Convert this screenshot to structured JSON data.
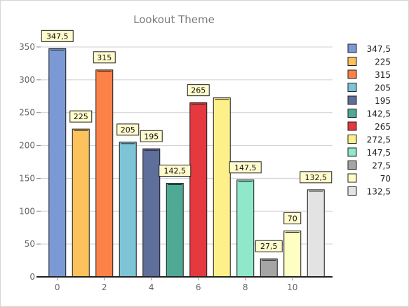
{
  "chart_data": {
    "type": "bar",
    "title": "Lookout Theme",
    "xlabel": "",
    "ylabel": "",
    "categories": [
      0,
      1,
      2,
      3,
      4,
      5,
      6,
      7,
      8,
      9,
      10,
      11
    ],
    "values": [
      347.5,
      225,
      315,
      205,
      195,
      142.5,
      265,
      272.5,
      147.5,
      27.5,
      70,
      132.5
    ],
    "value_labels": [
      "347,5",
      "225",
      "315",
      "205",
      "195",
      "142,5",
      "265",
      "",
      "147,5",
      "27,5",
      "70",
      "132,5"
    ],
    "legend_labels": [
      "347,5",
      "225",
      "315",
      "205",
      "195",
      "142,5",
      "265",
      "272,5",
      "147,5",
      "27,5",
      "70",
      "132,5"
    ],
    "colors": [
      "#7b99d4",
      "#fcc25c",
      "#fd8247",
      "#7dc4d6",
      "#5f6f9c",
      "#4fa994",
      "#e6383f",
      "#fdf08a",
      "#8fe8c9",
      "#a5a5a5",
      "#fefdc2",
      "#e3e3e3"
    ],
    "x_ticks": [
      "0",
      "2",
      "4",
      "6",
      "8",
      "10"
    ],
    "y_ticks": [
      "0",
      "50",
      "100",
      "150",
      "200",
      "250",
      "300",
      "350"
    ],
    "ylim": [
      0,
      350
    ],
    "grid": "horizontal",
    "legend_position": "right"
  }
}
